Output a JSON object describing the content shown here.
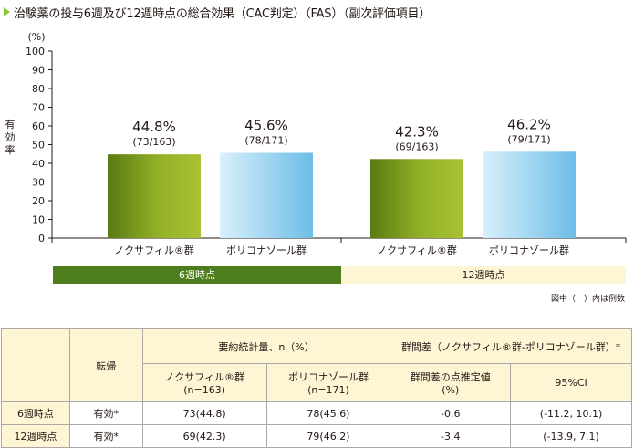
{
  "title": "治験薬の投与6週及び12週時点の総合効果（CAC判定）（FAS）（副次評価項目）",
  "chart_data": {
    "type": "bar",
    "ylabel": "有効率",
    "yunit": "(%)",
    "ylim": [
      0,
      100
    ],
    "yticks": [
      0,
      10,
      20,
      30,
      40,
      50,
      60,
      70,
      80,
      90,
      100
    ],
    "groups": [
      {
        "label": "6週時点",
        "bars": [
          {
            "category": "ノクサフィル®群",
            "value": 44.8,
            "label": "44.8%",
            "fraction": "(73/163)",
            "color": "olive"
          },
          {
            "category": "ポリコナゾール群",
            "value": 45.6,
            "label": "45.6%",
            "fraction": "(78/171)",
            "color": "skyblue"
          }
        ]
      },
      {
        "label": "12週時点",
        "bars": [
          {
            "category": "ノクサフィル®群",
            "value": 42.3,
            "label": "42.3%",
            "fraction": "(69/163)",
            "color": "olive"
          },
          {
            "category": "ポリコナゾール群",
            "value": 46.2,
            "label": "46.2%",
            "fraction": "(79/171)",
            "color": "skyblue"
          }
        ]
      }
    ],
    "colors": {
      "olive_dark": "#5a7a12",
      "olive_light": "#a8c232",
      "sky_light": "#d9f0fb",
      "sky_dark": "#6cbde7"
    }
  },
  "footnote": "図中（　）内は例数",
  "table": {
    "header": {
      "outcome": "転帰",
      "summary": "要約統計量、n（%）",
      "diff": "群間差（ノクサフィル®群-ポリコナゾール群）*",
      "col_noxafil": "ノクサフィル®群",
      "col_noxafil_n": "(n=163)",
      "col_vori": "ポリコナゾール群",
      "col_vori_n": "(n=171)",
      "col_point": "群間差の点推定値",
      "col_point_unit": "(%)",
      "col_ci": "95%CI"
    },
    "rows": [
      {
        "timepoint": "6週時点",
        "outcome": "有効*",
        "noxafil": "73(44.8)",
        "vori": "78(45.6)",
        "point": "-0.6",
        "ci": "(-11.2, 10.1)"
      },
      {
        "timepoint": "12週時点",
        "outcome": "有効*",
        "noxafil": "69(42.3)",
        "vori": "79(46.2)",
        "point": "-3.4",
        "ci": "(-13.9, 7.1)"
      }
    ]
  }
}
